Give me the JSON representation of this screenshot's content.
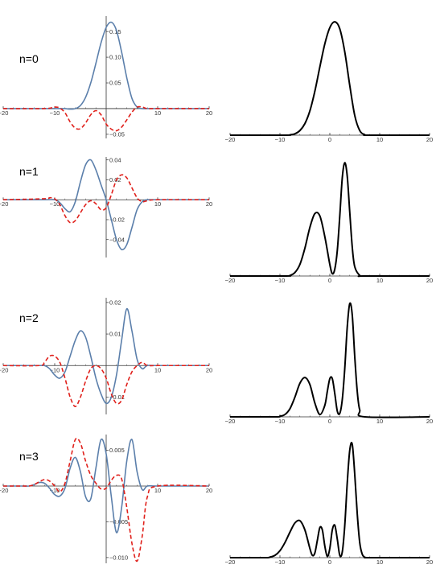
{
  "colors": {
    "real": "#5b7fab",
    "imag": "#e0201b",
    "density": "#000000",
    "axis": "#333333"
  },
  "chart_data": [
    {
      "type": "line",
      "panel": "left",
      "label": "n=0",
      "xlim": [
        -20,
        20
      ],
      "ylim": [
        -0.058,
        0.18
      ],
      "xticks": [
        -20,
        -10,
        10,
        20
      ],
      "yticks": [
        -0.05,
        0.05,
        0.1,
        0.15
      ],
      "ytick_labels": [
        "-0.05",
        "0.05",
        "0.10",
        "0.15"
      ],
      "series": [
        {
          "style": "solid",
          "color_key": "real",
          "x": [
            -20,
            -12,
            -10,
            -9,
            -8,
            -7,
            -6,
            -5,
            -4,
            -3,
            -2,
            -1,
            0,
            1,
            2,
            3,
            4,
            5,
            6,
            7,
            8,
            10,
            20
          ],
          "y": [
            0,
            0,
            0,
            0,
            0,
            -0.001,
            0,
            0.006,
            0.022,
            0.05,
            0.088,
            0.128,
            0.158,
            0.168,
            0.152,
            0.11,
            0.06,
            0.02,
            0.003,
            0,
            0,
            0,
            0
          ]
        },
        {
          "style": "dashed",
          "color_key": "imag",
          "x": [
            -20,
            -12,
            -10,
            -9,
            -8,
            -7,
            -6,
            -5,
            -4,
            -3,
            -2,
            -1,
            0,
            1,
            2,
            3,
            4,
            5,
            6,
            7,
            8,
            10,
            20
          ],
          "y": [
            0,
            0,
            0.003,
            0.001,
            -0.008,
            -0.026,
            -0.038,
            -0.039,
            -0.028,
            -0.012,
            -0.004,
            -0.012,
            -0.03,
            -0.04,
            -0.043,
            -0.036,
            -0.022,
            -0.007,
            0.003,
            0.003,
            0,
            0,
            0
          ]
        }
      ]
    },
    {
      "type": "line",
      "panel": "left",
      "label": "n=1",
      "xlim": [
        -20,
        20
      ],
      "ylim": [
        -0.058,
        0.043
      ],
      "xticks": [
        -20,
        -10,
        10,
        20
      ],
      "yticks": [
        -0.04,
        -0.02,
        0.02,
        0.04
      ],
      "ytick_labels": [
        "-0.04",
        "-0.02",
        "0.02",
        "0.04"
      ],
      "series": [
        {
          "style": "solid",
          "color_key": "real",
          "x": [
            -20,
            -12,
            -10,
            -9,
            -8,
            -7,
            -6,
            -5,
            -4,
            -3,
            -2,
            -1,
            0,
            1,
            2,
            3,
            4,
            5,
            6,
            7,
            8,
            10,
            20
          ],
          "y": [
            0,
            0,
            0,
            -0.003,
            -0.009,
            -0.012,
            -0.002,
            0.018,
            0.035,
            0.04,
            0.03,
            0.015,
            0,
            -0.02,
            -0.04,
            -0.05,
            -0.045,
            -0.028,
            -0.01,
            -0.002,
            0,
            0,
            0
          ]
        },
        {
          "style": "dashed",
          "color_key": "imag",
          "x": [
            -20,
            -12,
            -11,
            -10,
            -9,
            -8,
            -7,
            -6,
            -5,
            -4,
            -3,
            -2,
            -1,
            0,
            1,
            2,
            3,
            4,
            5,
            6,
            7,
            8,
            10,
            20
          ],
          "y": [
            0,
            0.001,
            0.002,
            0.001,
            -0.005,
            -0.016,
            -0.023,
            -0.021,
            -0.013,
            -0.005,
            -0.001,
            -0.004,
            -0.01,
            -0.008,
            0.005,
            0.02,
            0.025,
            0.022,
            0.012,
            0.002,
            -0.002,
            -0.001,
            0,
            0
          ]
        }
      ]
    },
    {
      "type": "line",
      "panel": "left",
      "label": "n=2",
      "xlim": [
        -20,
        20
      ],
      "ylim": [
        -0.0155,
        0.0215
      ],
      "xticks": [
        -20,
        -10,
        10,
        20
      ],
      "yticks": [
        -0.01,
        0.01,
        0.02
      ],
      "ytick_labels": [
        "-0.01",
        "0.01",
        "0.02"
      ],
      "series": [
        {
          "style": "solid",
          "color_key": "real",
          "x": [
            -20,
            -13,
            -12,
            -11,
            -10,
            -9,
            -8,
            -7,
            -6,
            -5,
            -4,
            -3,
            -2,
            -1,
            0,
            1,
            2,
            3,
            4,
            5,
            6,
            7,
            8,
            10,
            20
          ],
          "y": [
            0,
            0,
            0,
            -0.001,
            -0.003,
            -0.004,
            -0.002,
            0.003,
            0.008,
            0.011,
            0.009,
            0.003,
            -0.004,
            -0.009,
            -0.012,
            -0.01,
            -0.003,
            0.008,
            0.018,
            0.011,
            0.002,
            -0.001,
            0,
            0,
            0
          ]
        },
        {
          "style": "dashed",
          "color_key": "imag",
          "x": [
            -20,
            -13,
            -12,
            -11,
            -10,
            -9,
            -8,
            -7,
            -6,
            -5,
            -4,
            -3,
            -2,
            -1,
            0,
            1,
            2,
            3,
            4,
            5,
            6,
            7,
            8,
            10,
            20
          ],
          "y": [
            0,
            0,
            0.001,
            0.003,
            0.003,
            0.001,
            -0.004,
            -0.01,
            -0.013,
            -0.01,
            -0.005,
            -0.001,
            0,
            -0.001,
            -0.004,
            -0.009,
            -0.012,
            -0.011,
            -0.006,
            -0.002,
            0,
            0.001,
            0,
            0,
            0
          ]
        }
      ]
    },
    {
      "type": "line",
      "panel": "left",
      "label": "n=3",
      "xlim": [
        -20,
        20
      ],
      "ylim": [
        -0.0108,
        0.0072
      ],
      "xticks": [
        -20,
        -10,
        10,
        20
      ],
      "yticks": [
        -0.01,
        -0.005,
        0.005
      ],
      "ytick_labels": [
        "-0.010",
        "-0.005",
        "0.005"
      ],
      "series": [
        {
          "style": "solid",
          "color_key": "real",
          "x": [
            -20,
            -16,
            -15,
            -14,
            -13,
            -12,
            -11,
            -10,
            -9,
            -8,
            -7,
            -6,
            -5,
            -4,
            -3,
            -2,
            -1,
            0,
            1,
            2,
            3,
            4,
            5,
            6,
            7,
            8,
            10,
            20
          ],
          "y": [
            0,
            0,
            0,
            0.0002,
            0.0005,
            0.0004,
            -0.0003,
            -0.0012,
            -0.0014,
            -0.0003,
            0.0025,
            0.004,
            0.002,
            -0.0015,
            -0.0018,
            0.0025,
            0.0065,
            0.0045,
            -0.0015,
            -0.0065,
            -0.003,
            0.0035,
            0.0065,
            0.002,
            -0.0005,
            0,
            0,
            0
          ]
        },
        {
          "style": "dashed",
          "color_key": "imag",
          "x": [
            -20,
            -16,
            -15,
            -14,
            -13,
            -12,
            -11,
            -10,
            -9,
            -8,
            -7,
            -6,
            -5,
            -4,
            -3,
            -2,
            -1,
            0,
            1,
            2,
            3,
            4,
            5,
            6,
            7,
            8,
            10,
            20
          ],
          "y": [
            0,
            0,
            0,
            0.0002,
            0.0006,
            0.0009,
            0.0007,
            0,
            -0.0008,
            0.0004,
            0.0035,
            0.0065,
            0.006,
            0.0035,
            0.0015,
            0.0004,
            -0.0004,
            -0.0003,
            0.0008,
            0.0015,
            0.001,
            -0.003,
            -0.008,
            -0.0105,
            -0.007,
            -0.0015,
            0,
            0
          ]
        }
      ]
    },
    {
      "type": "line",
      "panel": "right",
      "xlim": [
        -20,
        20
      ],
      "ylim": [
        0,
        1.03
      ],
      "xticks": [
        -20,
        -10,
        0,
        10,
        20
      ],
      "yticks": [],
      "ytick_labels": [],
      "series": [
        {
          "style": "solid",
          "color_key": "density",
          "x": [
            -20,
            -9,
            -8,
            -7,
            -6,
            -5,
            -4,
            -3,
            -2,
            -1,
            0,
            1,
            2,
            3,
            4,
            5,
            6,
            7,
            8,
            20
          ],
          "y": [
            0,
            0,
            0.003,
            0.012,
            0.04,
            0.1,
            0.21,
            0.38,
            0.59,
            0.79,
            0.93,
            0.98,
            0.92,
            0.72,
            0.43,
            0.17,
            0.04,
            0.005,
            0,
            0
          ]
        }
      ]
    },
    {
      "type": "line",
      "panel": "right",
      "xlim": [
        -20,
        20
      ],
      "ylim": [
        0,
        1.03
      ],
      "xticks": [
        -20,
        -10,
        0,
        10,
        20
      ],
      "yticks": [],
      "ytick_labels": [],
      "series": [
        {
          "style": "solid",
          "color_key": "density",
          "x": [
            -20,
            -9,
            -8,
            -7,
            -6,
            -5,
            -4,
            -3,
            -2,
            -1,
            0,
            0.5,
            1,
            1.5,
            2,
            2.5,
            3,
            3.5,
            4,
            4.5,
            5,
            6,
            7,
            20
          ],
          "y": [
            0,
            0,
            0.005,
            0.03,
            0.1,
            0.24,
            0.42,
            0.54,
            0.52,
            0.34,
            0.1,
            0.02,
            0.06,
            0.22,
            0.52,
            0.85,
            0.98,
            0.86,
            0.55,
            0.25,
            0.08,
            0.005,
            0,
            0
          ]
        }
      ]
    },
    {
      "type": "line",
      "panel": "right",
      "xlim": [
        -20,
        20
      ],
      "ylim": [
        0,
        1.03
      ],
      "xticks": [
        -20,
        -10,
        0,
        10,
        20
      ],
      "yticks": [],
      "ytick_labels": [],
      "series": [
        {
          "style": "solid",
          "color_key": "density",
          "x": [
            -20,
            -11,
            -10,
            -9,
            -8,
            -7,
            -6,
            -5,
            -4,
            -3,
            -2,
            -1,
            -0.5,
            0,
            0.5,
            1,
            1.5,
            2,
            2.5,
            3,
            3.5,
            4,
            4.5,
            5,
            5.5,
            6,
            7,
            20
          ],
          "y": [
            0,
            0,
            0.005,
            0.02,
            0.07,
            0.17,
            0.29,
            0.34,
            0.28,
            0.12,
            0.02,
            0.1,
            0.22,
            0.33,
            0.33,
            0.2,
            0.05,
            0.03,
            0.15,
            0.42,
            0.78,
            0.98,
            0.88,
            0.52,
            0.22,
            0.06,
            0,
            0
          ]
        }
      ]
    },
    {
      "type": "line",
      "panel": "right",
      "xlim": [
        -20,
        20
      ],
      "ylim": [
        0,
        1.03
      ],
      "xticks": [
        -20,
        -10,
        0,
        10,
        20
      ],
      "yticks": [],
      "ytick_labels": [],
      "series": [
        {
          "style": "solid",
          "color_key": "density",
          "x": [
            -20,
            -13,
            -12,
            -11,
            -10,
            -9,
            -8,
            -7,
            -6,
            -5,
            -4,
            -3.5,
            -3,
            -2.5,
            -2,
            -1.5,
            -1,
            -0.5,
            0,
            0.5,
            1,
            1.5,
            2,
            2.5,
            3,
            3.5,
            4,
            4.5,
            5,
            5.5,
            6,
            6.5,
            7,
            7.5,
            8,
            20
          ],
          "y": [
            0,
            0,
            0.005,
            0.02,
            0.06,
            0.13,
            0.22,
            0.3,
            0.32,
            0.24,
            0.08,
            0.02,
            0.04,
            0.15,
            0.26,
            0.24,
            0.1,
            0.01,
            0.08,
            0.24,
            0.28,
            0.16,
            0.02,
            0.05,
            0.28,
            0.65,
            0.93,
            0.98,
            0.72,
            0.38,
            0.13,
            0.03,
            0.004,
            0,
            0,
            0
          ]
        }
      ]
    }
  ]
}
